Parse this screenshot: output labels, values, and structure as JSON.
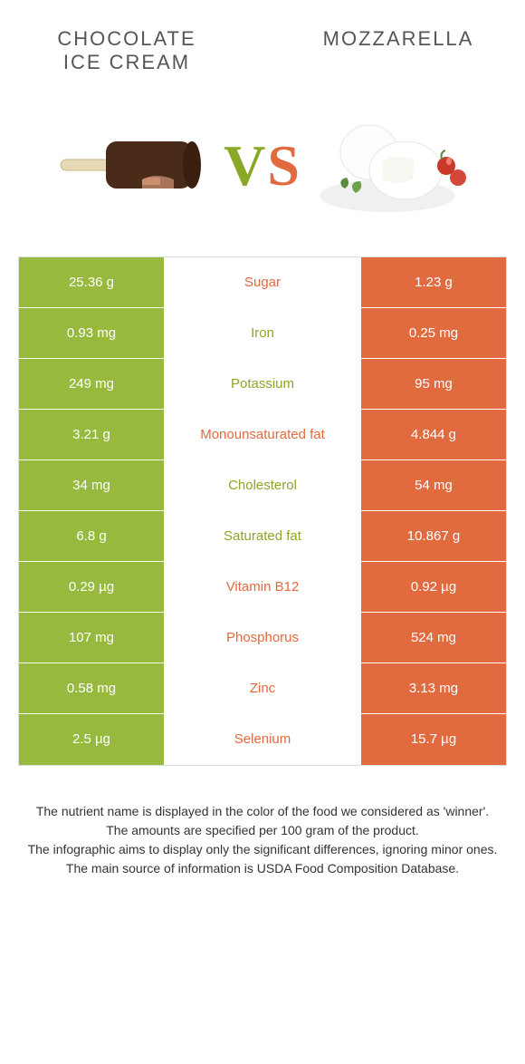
{
  "colors": {
    "green": "#97b93d",
    "orange": "#e26a3f",
    "green_text": "#8aa827",
    "orange_text": "#e26a3f",
    "title_text": "#555555",
    "footer_text": "#333333"
  },
  "food_left": {
    "title": "Chocolate ice cream"
  },
  "food_right": {
    "title": "Mozzarella"
  },
  "vs": {
    "v": "V",
    "s": "S"
  },
  "rows": [
    {
      "left": "25.36 g",
      "mid": "Sugar",
      "right": "1.23 g",
      "winner": "right"
    },
    {
      "left": "0.93 mg",
      "mid": "Iron",
      "right": "0.25 mg",
      "winner": "left"
    },
    {
      "left": "249 mg",
      "mid": "Potassium",
      "right": "95 mg",
      "winner": "left"
    },
    {
      "left": "3.21 g",
      "mid": "Monounsaturated fat",
      "right": "4.844 g",
      "winner": "right"
    },
    {
      "left": "34 mg",
      "mid": "Cholesterol",
      "right": "54 mg",
      "winner": "left"
    },
    {
      "left": "6.8 g",
      "mid": "Saturated fat",
      "right": "10.867 g",
      "winner": "left"
    },
    {
      "left": "0.29 µg",
      "mid": "Vitamin B12",
      "right": "0.92 µg",
      "winner": "right"
    },
    {
      "left": "107 mg",
      "mid": "Phosphorus",
      "right": "524 mg",
      "winner": "right"
    },
    {
      "left": "0.58 mg",
      "mid": "Zinc",
      "right": "3.13 mg",
      "winner": "right"
    },
    {
      "left": "2.5 µg",
      "mid": "Selenium",
      "right": "15.7 µg",
      "winner": "right"
    }
  ],
  "footer": {
    "line1": "The nutrient name is displayed in the color of the food we considered as 'winner'.",
    "line2": "The amounts are specified per 100 gram of the product.",
    "line3": "The infographic aims to display only the significant differences, ignoring minor ones.",
    "line4": "The main source of information is USDA Food Composition Database."
  }
}
